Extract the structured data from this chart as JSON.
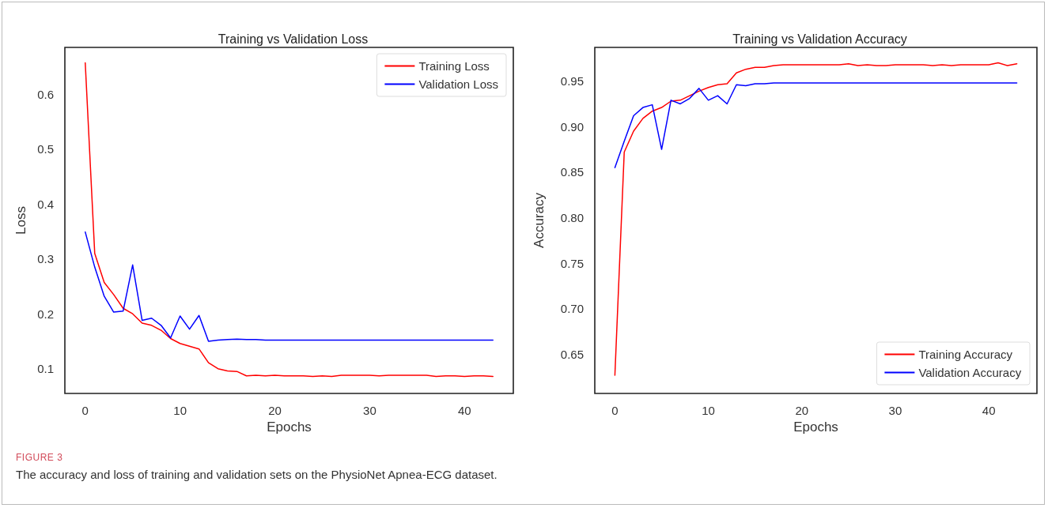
{
  "chart_data": [
    {
      "type": "line",
      "title": "Training vs Validation Loss",
      "xlabel": "Epochs",
      "ylabel": "Loss",
      "x": [
        0,
        1,
        2,
        3,
        4,
        5,
        6,
        7,
        8,
        9,
        10,
        11,
        12,
        13,
        14,
        15,
        16,
        17,
        18,
        19,
        20,
        21,
        22,
        23,
        24,
        25,
        26,
        27,
        28,
        29,
        30,
        31,
        32,
        33,
        34,
        35,
        36,
        37,
        38,
        39,
        40,
        41,
        42,
        43
      ],
      "series": [
        {
          "name": "Training Loss",
          "color": "#ff0000",
          "values": [
            0.657,
            0.31,
            0.257,
            0.235,
            0.21,
            0.2,
            0.183,
            0.179,
            0.17,
            0.155,
            0.146,
            0.141,
            0.136,
            0.111,
            0.1,
            0.096,
            0.095,
            0.087,
            0.088,
            0.087,
            0.088,
            0.087,
            0.087,
            0.087,
            0.086,
            0.087,
            0.086,
            0.088,
            0.088,
            0.088,
            0.088,
            0.087,
            0.088,
            0.088,
            0.088,
            0.088,
            0.088,
            0.086,
            0.087,
            0.087,
            0.086,
            0.087,
            0.087,
            0.086
          ]
        },
        {
          "name": "Validation Loss",
          "color": "#0000ff",
          "values": [
            0.349,
            0.285,
            0.232,
            0.203,
            0.205,
            0.289,
            0.188,
            0.192,
            0.179,
            0.156,
            0.196,
            0.172,
            0.197,
            0.15,
            0.152,
            0.153,
            0.154,
            0.153,
            0.153,
            0.152,
            0.152,
            0.152,
            0.152,
            0.152,
            0.152,
            0.152,
            0.152,
            0.152,
            0.152,
            0.152,
            0.152,
            0.152,
            0.152,
            0.152,
            0.152,
            0.152,
            0.152,
            0.152,
            0.152,
            0.152,
            0.152,
            0.152,
            0.152,
            0.152
          ]
        }
      ],
      "xlim": [
        -2.15,
        45.15
      ],
      "xticks": [
        0,
        10,
        20,
        30,
        40
      ],
      "ylim": [
        0.055,
        0.685
      ],
      "yticks": [
        0.1,
        0.2,
        0.3,
        0.4,
        0.5,
        0.6
      ],
      "grid": false,
      "legend": "top right",
      "marker": "none",
      "line_style": "solid",
      "annotations": [
        "FIGURE 3",
        "The accuracy and loss of training and validation sets on the PhysioNet Apnea-ECG dataset."
      ]
    },
    {
      "type": "line",
      "title": "Training vs Validation Accuracy",
      "xlabel": "Epochs",
      "ylabel": "Accuracy",
      "x": [
        0,
        1,
        2,
        3,
        4,
        5,
        6,
        7,
        8,
        9,
        10,
        11,
        12,
        13,
        14,
        15,
        16,
        17,
        18,
        19,
        20,
        21,
        22,
        23,
        24,
        25,
        26,
        27,
        28,
        29,
        30,
        31,
        32,
        33,
        34,
        35,
        36,
        37,
        38,
        39,
        40,
        41,
        42,
        43
      ],
      "series": [
        {
          "name": "Training Accuracy",
          "color": "#ff0000",
          "values": [
            0.627,
            0.872,
            0.895,
            0.909,
            0.917,
            0.921,
            0.928,
            0.929,
            0.934,
            0.939,
            0.943,
            0.946,
            0.947,
            0.959,
            0.963,
            0.965,
            0.965,
            0.967,
            0.968,
            0.968,
            0.968,
            0.968,
            0.968,
            0.968,
            0.968,
            0.969,
            0.967,
            0.968,
            0.967,
            0.967,
            0.968,
            0.968,
            0.968,
            0.968,
            0.967,
            0.968,
            0.967,
            0.968,
            0.968,
            0.968,
            0.968,
            0.97,
            0.967,
            0.969
          ]
        },
        {
          "name": "Validation Accuracy",
          "color": "#0000ff",
          "values": [
            0.855,
            0.884,
            0.912,
            0.921,
            0.924,
            0.875,
            0.929,
            0.925,
            0.931,
            0.942,
            0.929,
            0.934,
            0.925,
            0.946,
            0.945,
            0.947,
            0.947,
            0.948,
            0.948,
            0.948,
            0.948,
            0.948,
            0.948,
            0.948,
            0.948,
            0.948,
            0.948,
            0.948,
            0.948,
            0.948,
            0.948,
            0.948,
            0.948,
            0.948,
            0.948,
            0.948,
            0.948,
            0.948,
            0.948,
            0.948,
            0.948,
            0.948,
            0.948,
            0.948
          ]
        }
      ],
      "xlim": [
        -2.15,
        45.15
      ],
      "xticks": [
        0,
        10,
        20,
        30,
        40
      ],
      "ylim": [
        0.607,
        0.987
      ],
      "yticks": [
        {
          "value": 0.65,
          "label": "0.65"
        },
        {
          "value": 0.7,
          "label": "0.70"
        },
        {
          "value": 0.75,
          "label": "0.75"
        },
        {
          "value": 0.8,
          "label": "0.80"
        },
        {
          "value": 0.85,
          "label": "0.85"
        },
        {
          "value": 0.9,
          "label": "0.90"
        },
        {
          "value": 0.95,
          "label": "0.95"
        }
      ],
      "grid": false,
      "legend": "bottom right",
      "marker": "none",
      "line_style": "solid"
    }
  ]
}
